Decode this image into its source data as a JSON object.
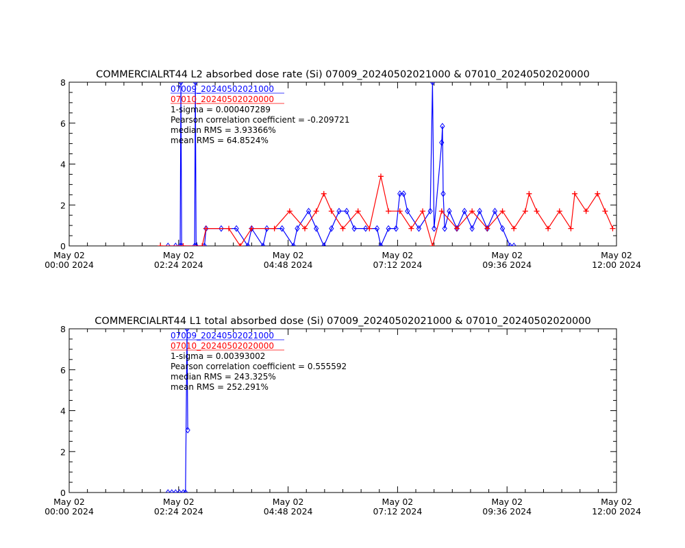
{
  "colors": {
    "series_a": "#0000ff",
    "series_b": "#ff0000",
    "frame": "#000000"
  },
  "x_tick_labels": [
    [
      "May 02",
      "00:00 2024"
    ],
    [
      "May 02",
      "02:24 2024"
    ],
    [
      "May 02",
      "04:48 2024"
    ],
    [
      "May 02",
      "07:12 2024"
    ],
    [
      "May 02",
      "09:36 2024"
    ],
    [
      "May 02",
      "12:00 2024"
    ]
  ],
  "chart_data": [
    {
      "type": "line",
      "title": "COMMERCIALRT44 L2 absorbed dose rate (Si) 07009_20240502021000 & 07010_20240502020000",
      "xlabel": "",
      "ylabel": "",
      "xlim": [
        "2024-05-02 00:00",
        "2024-05-02 12:00"
      ],
      "ylim": [
        0,
        8
      ],
      "y_ticks": [
        0,
        2,
        4,
        6,
        8
      ],
      "grid": false,
      "legend_position": "top-left, inside plot",
      "annotations": [
        "1-sigma = 0.000407289",
        "Pearson correlation coefficient = -0.209721",
        "median RMS = 3.93366%",
        "mean RMS = 64.8524%"
      ],
      "series": [
        {
          "name": "07009_20240502021000",
          "color": "#0000ff",
          "marker": "diamond",
          "points": [
            [
              "02:10",
              0.0
            ],
            [
              "02:20",
              0.0
            ],
            [
              "02:26",
              0.0
            ],
            [
              "02:27",
              8.0
            ],
            [
              "02:28",
              0.0
            ],
            [
              "02:45",
              0.0
            ],
            [
              "02:46",
              8.0
            ],
            [
              "02:47",
              0.0
            ],
            [
              "02:58",
              0.0
            ],
            [
              "03:00",
              0.85
            ],
            [
              "03:20",
              0.85
            ],
            [
              "03:40",
              0.85
            ],
            [
              "03:55",
              0.0
            ],
            [
              "04:00",
              0.85
            ],
            [
              "04:15",
              0.0
            ],
            [
              "04:20",
              0.85
            ],
            [
              "04:40",
              0.85
            ],
            [
              "04:55",
              0.0
            ],
            [
              "05:00",
              0.85
            ],
            [
              "05:15",
              1.7
            ],
            [
              "05:25",
              0.85
            ],
            [
              "05:35",
              0.0
            ],
            [
              "05:45",
              0.85
            ],
            [
              "05:55",
              1.7
            ],
            [
              "06:05",
              1.7
            ],
            [
              "06:15",
              0.85
            ],
            [
              "06:30",
              0.85
            ],
            [
              "06:45",
              0.85
            ],
            [
              "06:50",
              0.0
            ],
            [
              "07:00",
              0.85
            ],
            [
              "07:10",
              0.85
            ],
            [
              "07:15",
              2.55
            ],
            [
              "07:20",
              2.55
            ],
            [
              "07:25",
              1.7
            ],
            [
              "07:40",
              0.85
            ],
            [
              "07:55",
              1.7
            ],
            [
              "07:58",
              8.0
            ],
            [
              "08:00",
              0.85
            ],
            [
              "08:10",
              5.05
            ],
            [
              "08:11",
              5.85
            ],
            [
              "08:12",
              2.55
            ],
            [
              "08:14",
              0.85
            ],
            [
              "08:20",
              1.7
            ],
            [
              "08:30",
              0.85
            ],
            [
              "08:40",
              1.7
            ],
            [
              "08:50",
              0.85
            ],
            [
              "09:00",
              1.7
            ],
            [
              "09:10",
              0.85
            ],
            [
              "09:20",
              1.7
            ],
            [
              "09:30",
              0.85
            ],
            [
              "09:40",
              0.0
            ],
            [
              "09:45",
              0.0
            ]
          ]
        },
        {
          "name": "07010_20240502020000",
          "color": "#ff0000",
          "marker": "plus",
          "points": [
            [
              "02:00",
              0.0
            ],
            [
              "02:30",
              0.0
            ],
            [
              "02:55",
              0.0
            ],
            [
              "03:00",
              0.85
            ],
            [
              "03:30",
              0.85
            ],
            [
              "03:45",
              0.0
            ],
            [
              "04:00",
              0.85
            ],
            [
              "04:30",
              0.85
            ],
            [
              "04:50",
              1.7
            ],
            [
              "05:10",
              0.85
            ],
            [
              "05:25",
              1.7
            ],
            [
              "05:35",
              2.55
            ],
            [
              "05:45",
              1.7
            ],
            [
              "06:00",
              0.85
            ],
            [
              "06:20",
              1.7
            ],
            [
              "06:35",
              0.85
            ],
            [
              "06:50",
              3.4
            ],
            [
              "07:00",
              1.7
            ],
            [
              "07:15",
              1.7
            ],
            [
              "07:30",
              0.85
            ],
            [
              "07:45",
              1.7
            ],
            [
              "07:58",
              0.0
            ],
            [
              "08:10",
              1.7
            ],
            [
              "08:30",
              0.85
            ],
            [
              "08:50",
              1.7
            ],
            [
              "09:10",
              0.85
            ],
            [
              "09:30",
              1.7
            ],
            [
              "09:45",
              0.85
            ],
            [
              "10:00",
              1.7
            ],
            [
              "10:05",
              2.55
            ],
            [
              "10:15",
              1.7
            ],
            [
              "10:30",
              0.85
            ],
            [
              "10:45",
              1.7
            ],
            [
              "11:00",
              0.85
            ],
            [
              "11:05",
              2.55
            ],
            [
              "11:20",
              1.7
            ],
            [
              "11:35",
              2.55
            ],
            [
              "11:45",
              1.7
            ],
            [
              "11:55",
              0.85
            ]
          ]
        }
      ]
    },
    {
      "type": "line",
      "title": "COMMERCIALRT44 L1 total absorbed dose (Si) 07009_20240502021000 & 07010_20240502020000",
      "xlabel": "",
      "ylabel": "",
      "xlim": [
        "2024-05-02 00:00",
        "2024-05-02 12:00"
      ],
      "ylim": [
        0,
        8
      ],
      "y_ticks": [
        0,
        2,
        4,
        6,
        8
      ],
      "grid": false,
      "legend_position": "top-left, inside plot",
      "annotations": [
        "1-sigma = 0.00393002",
        "Pearson correlation coefficient = 0.555592",
        "median RMS = 243.325%",
        "mean RMS = 252.291%"
      ],
      "series": [
        {
          "name": "07009_20240502021000",
          "color": "#0000ff",
          "marker": "diamond",
          "points": [
            [
              "02:10",
              0.0
            ],
            [
              "02:15",
              0.0
            ],
            [
              "02:20",
              0.0
            ],
            [
              "02:25",
              0.0
            ],
            [
              "02:30",
              0.0
            ],
            [
              "02:33",
              0.0
            ],
            [
              "02:35",
              8.0
            ],
            [
              "02:36",
              3.05
            ]
          ]
        },
        {
          "name": "07010_20240502020000",
          "color": "#ff0000",
          "marker": "plus",
          "points": []
        }
      ]
    }
  ]
}
